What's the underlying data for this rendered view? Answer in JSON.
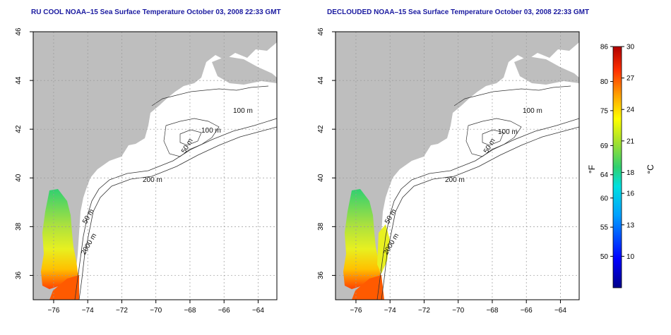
{
  "panels": [
    {
      "id": "left",
      "title": "RU COOL NOAA–15 Sea Surface Temperature October 03, 2008 22:33 GMT",
      "contour_labels": [
        "100 m",
        "100 m",
        "50 m",
        "200 m",
        "50 m",
        "2000 m"
      ]
    },
    {
      "id": "right",
      "title": "DECLOUDED NOAA–15 Sea Surface Temperature October 03, 2008 22:33 GMT",
      "contour_labels": [
        "100 m",
        "100 m",
        "50 m",
        "200 m",
        "50 m",
        "2000 m"
      ]
    }
  ],
  "axes": {
    "lon_ticks": [
      "−76",
      "−74",
      "−72",
      "−70",
      "−68",
      "−66",
      "−64"
    ],
    "lat_ticks": [
      "36",
      "38",
      "40",
      "42",
      "44",
      "46"
    ],
    "lon_range": [
      -77.2,
      -62.9
    ],
    "lat_range": [
      35,
      46
    ],
    "grid": "dotted"
  },
  "colorbar": {
    "fahrenheit_label": "°F",
    "celsius_label": "°C",
    "fahrenheit_ticks": [
      "86",
      "80",
      "75",
      "69",
      "64",
      "60",
      "55",
      "50"
    ],
    "celsius_ticks": [
      "30",
      "27",
      "24",
      "21",
      "18",
      "16",
      "13",
      "10"
    ],
    "celsius_range": [
      7,
      30
    ],
    "colors": [
      "#00008b",
      "#0000ff",
      "#00a0ff",
      "#00e0e0",
      "#30d070",
      "#a0e030",
      "#ffff00",
      "#ffa000",
      "#ff3000",
      "#b00000"
    ]
  },
  "colors": {
    "land": "#bebebe",
    "title": "#1a1aa0",
    "grid": "#9a9a9a"
  }
}
